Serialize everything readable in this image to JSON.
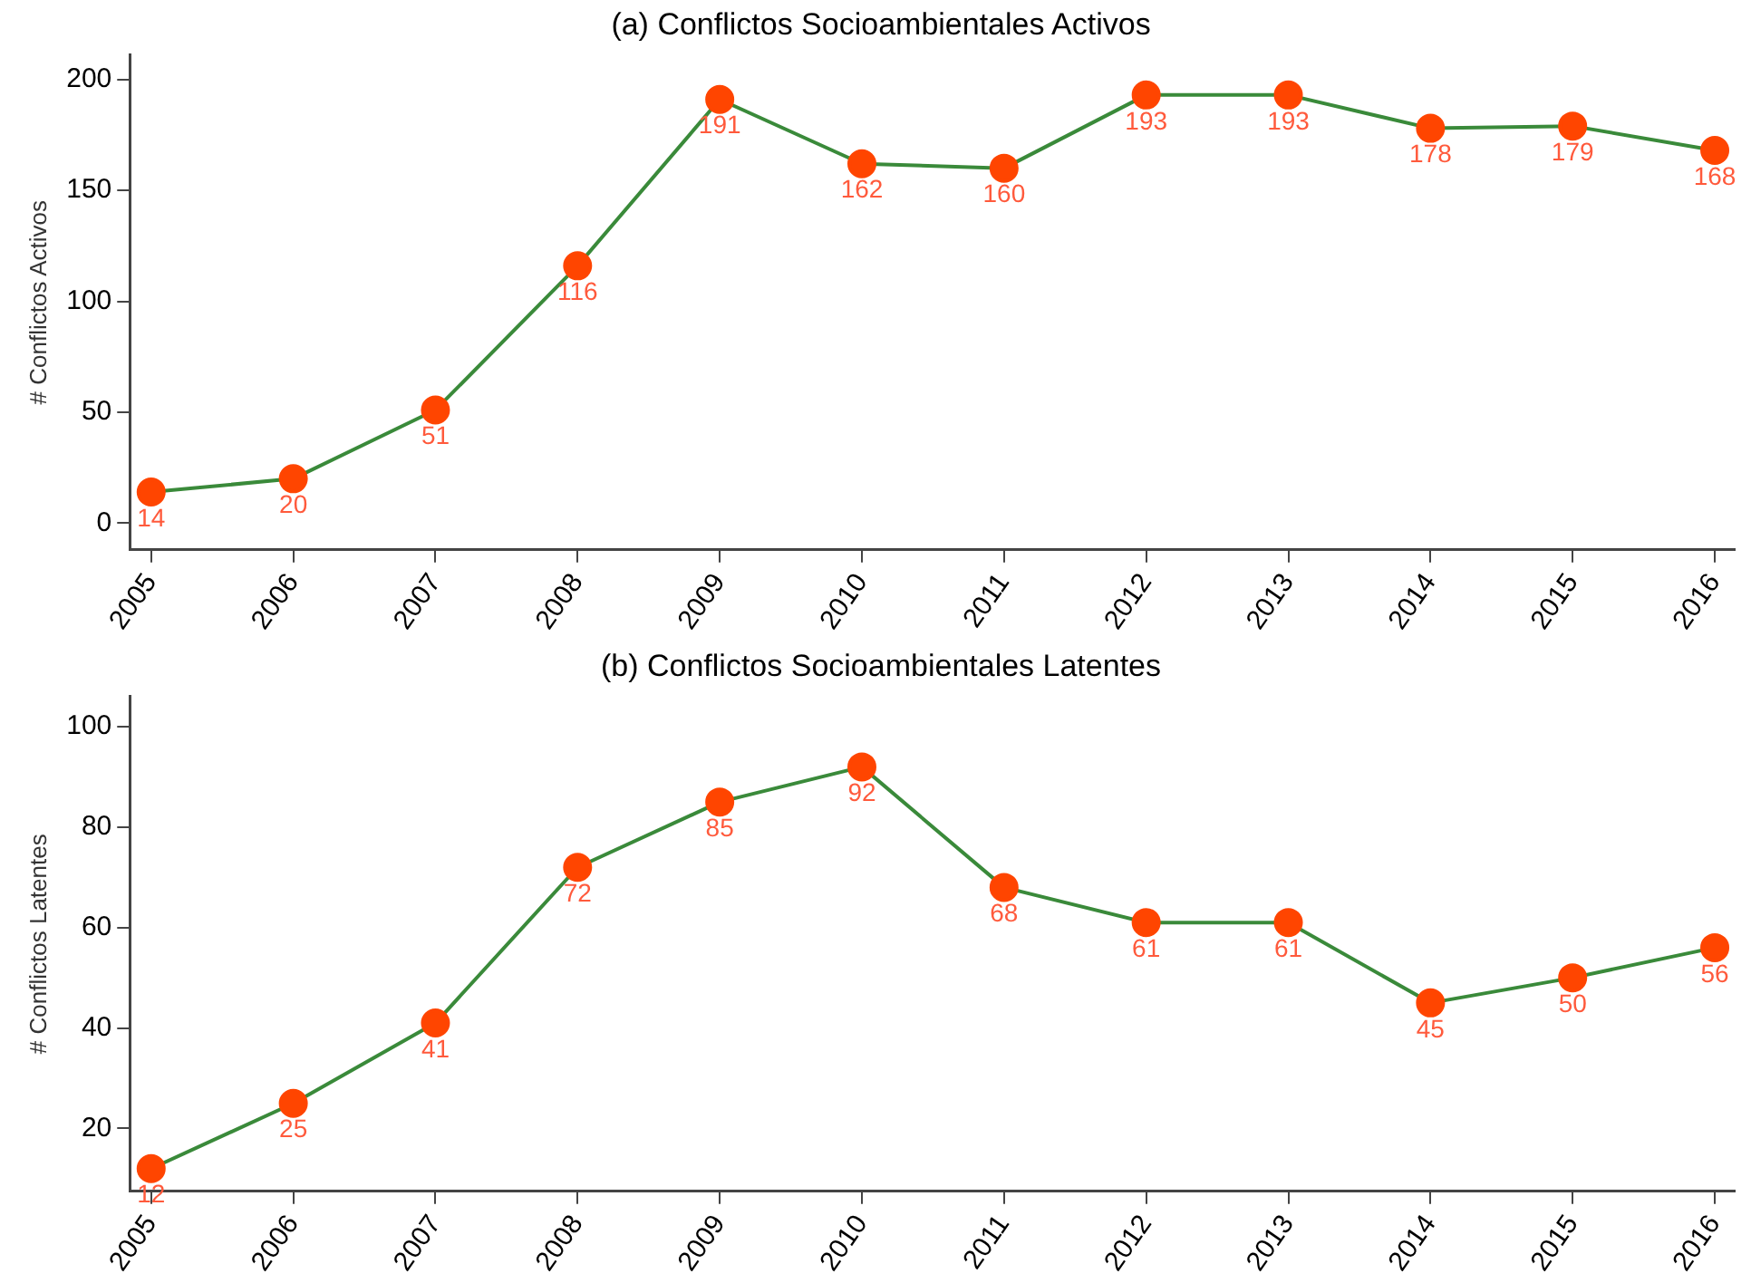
{
  "chart_data": [
    {
      "type": "line",
      "title": "(a) Conflictos Socioambientales Activos",
      "ylabel": "# Conflictos Activos",
      "x": [
        2005,
        2006,
        2007,
        2008,
        2009,
        2010,
        2011,
        2012,
        2013,
        2014,
        2015,
        2016
      ],
      "series": [
        {
          "color": "#3a8a3a",
          "values": [
            14,
            20,
            51,
            116,
            191,
            162,
            160,
            193,
            193,
            178,
            179,
            168
          ]
        }
      ],
      "xlim": [
        2004.85,
        2016.14
      ],
      "xticks": [
        2005,
        2006,
        2007,
        2008,
        2009,
        2010,
        2011,
        2012,
        2013,
        2014,
        2015,
        2016
      ],
      "ylim": [
        -12,
        211
      ],
      "yticks": [
        0,
        50,
        100,
        150,
        200
      ],
      "marker": "circle",
      "line_style": "solid",
      "grid": false,
      "legend": false,
      "data_labels": true
    },
    {
      "type": "line",
      "title": "(b) Conflictos Socioambientales Latentes",
      "ylabel": "# Conflictos Latentes",
      "x": [
        2005,
        2006,
        2007,
        2008,
        2009,
        2010,
        2011,
        2012,
        2013,
        2014,
        2015,
        2016
      ],
      "series": [
        {
          "color": "#3a8a3a",
          "values": [
            12,
            25,
            41,
            72,
            85,
            92,
            68,
            61,
            61,
            45,
            50,
            56
          ]
        }
      ],
      "xlim": [
        2004.85,
        2016.14
      ],
      "xticks": [
        2005,
        2006,
        2007,
        2008,
        2009,
        2010,
        2011,
        2012,
        2013,
        2014,
        2015,
        2016
      ],
      "ylim": [
        7.5,
        106
      ],
      "yticks": [
        20,
        40,
        60,
        80,
        100
      ],
      "marker": "circle",
      "line_style": "solid",
      "grid": false,
      "legend": false,
      "data_labels": true
    }
  ]
}
